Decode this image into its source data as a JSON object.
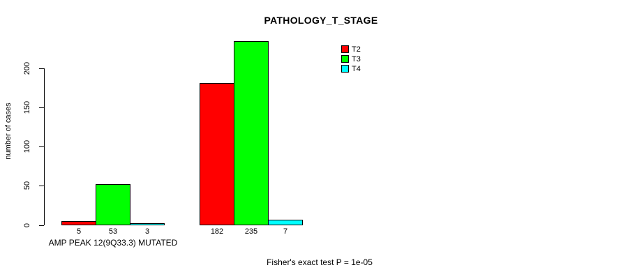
{
  "chart_data": {
    "type": "bar",
    "title": "PATHOLOGY_T_STAGE",
    "ylabel": "number of cases",
    "xlabel": "",
    "ylim": [
      0,
      235
    ],
    "yticks": [
      0,
      50,
      100,
      150,
      200
    ],
    "grid": false,
    "legend_position": "top-right",
    "bar_value_labels_shown": true,
    "categories": [
      "AMP PEAK 12(9Q33.3) MUTATED",
      ""
    ],
    "series": [
      {
        "name": "T2",
        "color": "#ff0000",
        "values": [
          5,
          182
        ]
      },
      {
        "name": "T3",
        "color": "#00ff00",
        "values": [
          53,
          235
        ]
      },
      {
        "name": "T4",
        "color": "#00ffff",
        "values": [
          3,
          7
        ]
      }
    ]
  },
  "footer": {
    "note": "Fisher's exact test P = 1e-05"
  }
}
